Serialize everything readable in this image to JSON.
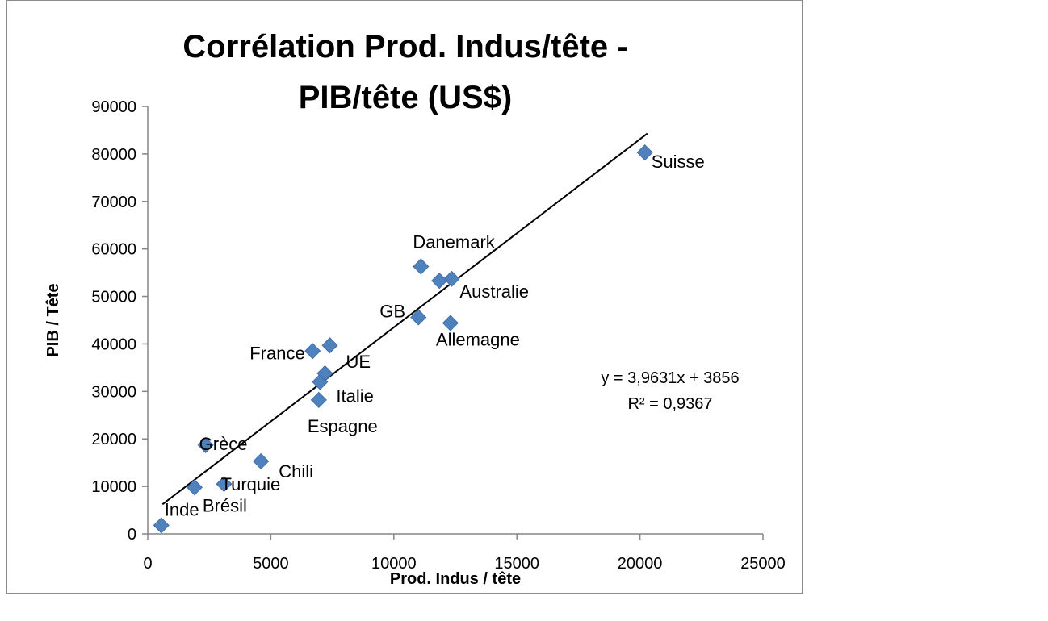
{
  "chart_data": {
    "type": "scatter",
    "title": [
      "Corrélation Prod. Indus/tête -",
      "PIB/tête (US$)"
    ],
    "xlabel": "Prod. Indus / tête",
    "ylabel": "PIB / Tête",
    "xlim": [
      0,
      25000
    ],
    "ylim": [
      0,
      90000
    ],
    "xticks": [
      0,
      5000,
      10000,
      15000,
      20000,
      25000
    ],
    "yticks": [
      0,
      10000,
      20000,
      30000,
      40000,
      50000,
      60000,
      70000,
      80000,
      90000
    ],
    "grid": false,
    "marker_color": "#4f81bd",
    "points": [
      {
        "label": "Inde",
        "x": 550,
        "y": 1800
      },
      {
        "label": "Brésil",
        "x": 1900,
        "y": 9800
      },
      {
        "label": "Turquie",
        "x": 3100,
        "y": 10500
      },
      {
        "label": "Grèce",
        "x": 2350,
        "y": 18700
      },
      {
        "label": "Chili",
        "x": 4600,
        "y": 15300
      },
      {
        "label": "Espagne",
        "x": 6950,
        "y": 28200
      },
      {
        "label": "Italie",
        "x": 7000,
        "y": 32000
      },
      {
        "label": "UE",
        "x": 7200,
        "y": 33800
      },
      {
        "label": "France",
        "x": 6700,
        "y": 38500
      },
      {
        "label": "",
        "x": 7400,
        "y": 39700
      },
      {
        "label": "GB",
        "x": 11000,
        "y": 45600
      },
      {
        "label": "Allemagne",
        "x": 12300,
        "y": 44400
      },
      {
        "label": "Danemark",
        "x": 11100,
        "y": 56300
      },
      {
        "label": "Australie",
        "x": 12350,
        "y": 53700
      },
      {
        "label": "",
        "x": 11850,
        "y": 53300
      },
      {
        "label": "Suisse",
        "x": 20200,
        "y": 80300
      }
    ],
    "trendline": {
      "slope": 3.9631,
      "intercept": 3856,
      "x_range": [
        600,
        20300
      ],
      "equation": "y = 3,9631x + 3856",
      "r_squared": "R² = 0,9367"
    }
  }
}
